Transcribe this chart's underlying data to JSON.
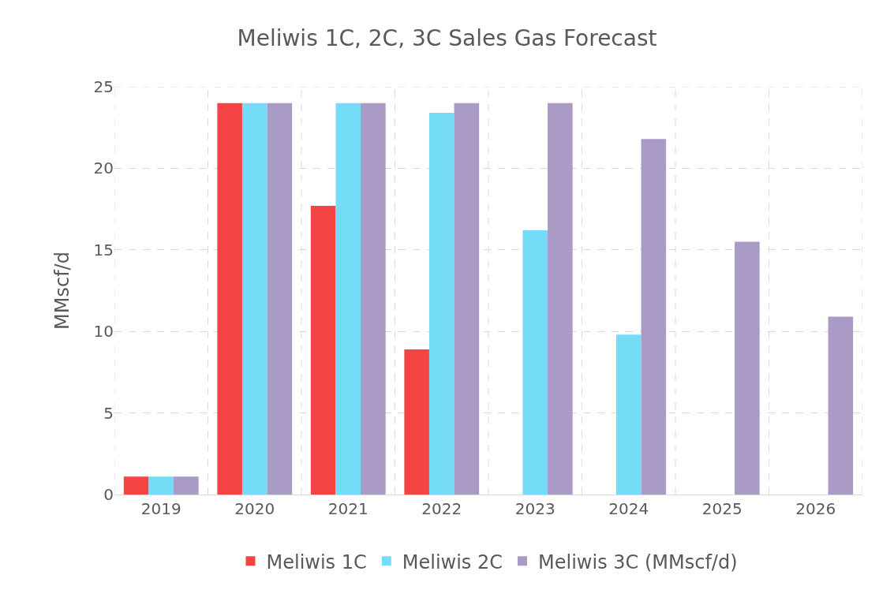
{
  "chart_data": {
    "type": "bar",
    "title": "Meliwis 1C, 2C, 3C Sales Gas Forecast",
    "ylabel": "MMscf/d",
    "categories": [
      "2019",
      "2020",
      "2021",
      "2022",
      "2023",
      "2024",
      "2025",
      "2026"
    ],
    "series": [
      {
        "name": "Meliwis 1C",
        "color": "#f44444",
        "values": [
          1.1,
          24,
          17.7,
          8.9,
          null,
          null,
          null,
          null
        ]
      },
      {
        "name": "Meliwis 2C",
        "color": "#75dcf7",
        "values": [
          1.1,
          24,
          24,
          23.4,
          16.2,
          9.8,
          null,
          null
        ]
      },
      {
        "name": "Meliwis 3C (MMscf/d)",
        "color": "#a99ac6",
        "values": [
          1.1,
          24,
          24,
          24,
          24,
          21.8,
          15.5,
          10.9
        ]
      }
    ],
    "ylim": [
      0,
      25
    ],
    "yticks": [
      0,
      5,
      10,
      15,
      20,
      25
    ],
    "grid": true,
    "legend": "bottom"
  }
}
